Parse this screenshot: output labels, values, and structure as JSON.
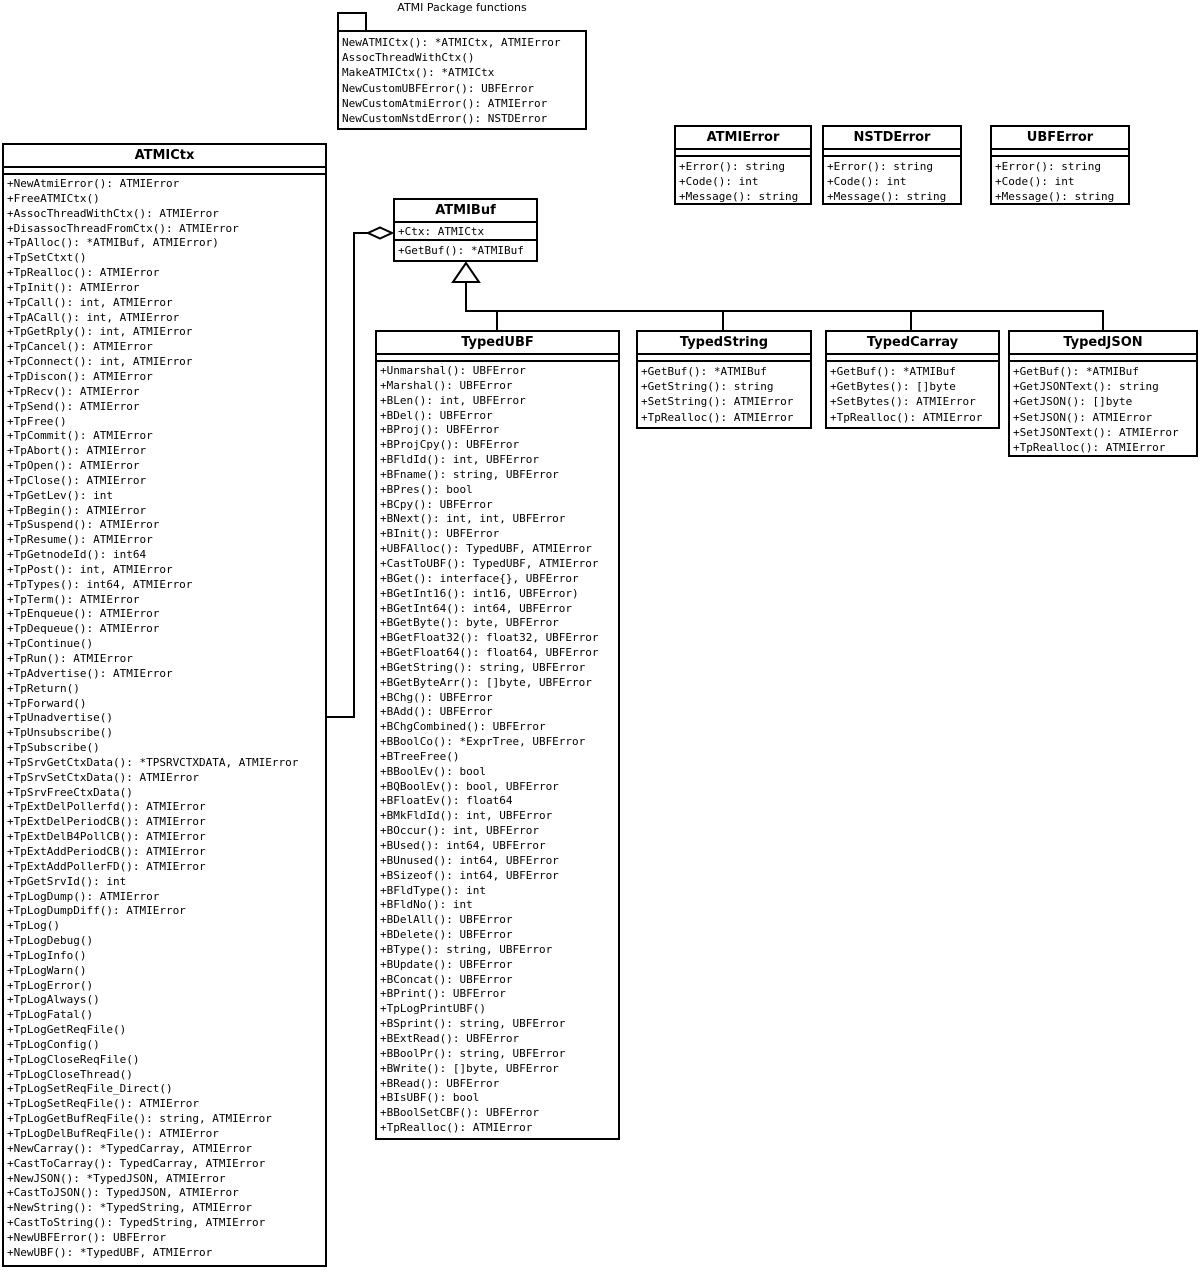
{
  "package_note": {
    "title": "ATMI Package functions",
    "functions": [
      "NewATMICtx(): *ATMICtx, ATMIError",
      "AssocThreadWithCtx()",
      "MakeATMICtx(): *ATMICtx",
      "NewCustomUBFError(): UBFError",
      "NewCustomAtmiError(): ATMIError",
      "NewCustomNstdError(): NSTDError"
    ]
  },
  "classes": {
    "atmictx": {
      "name": "ATMICtx",
      "attributes": [],
      "methods": [
        "+NewAtmiError(): ATMIError",
        "+FreeATMICtx()",
        "+AssocThreadWithCtx(): ATMIError",
        "+DisassocThreadFromCtx(): ATMIError",
        "+TpAlloc(): *ATMIBuf, ATMIError)",
        "+TpSetCtxt()",
        "+TpRealloc(): ATMIError",
        "+TpInit(): ATMIError",
        "+TpCall(): int, ATMIError",
        "+TpACall(): int, ATMIError",
        "+TpGetRply(): int, ATMIError",
        "+TpCancel(): ATMIError",
        "+TpConnect(): int, ATMIError",
        "+TpDiscon(): ATMIError",
        "+TpRecv(): ATMIError",
        "+TpSend(): ATMIError",
        "+TpFree()",
        "+TpCommit(): ATMIError",
        "+TpAbort(): ATMIError",
        "+TpOpen(): ATMIError",
        "+TpClose(): ATMIError",
        "+TpGetLev(): int",
        "+TpBegin(): ATMIError",
        "+TpSuspend(): ATMIError",
        "+TpResume(): ATMIError",
        "+TpGetnodeId(): int64",
        "+TpPost(): int, ATMIError",
        "+TpTypes(): int64, ATMIError",
        "+TpTerm(): ATMIError",
        "+TpEnqueue(): ATMIError",
        "+TpDequeue(): ATMIError",
        "+TpContinue()",
        "+TpRun(): ATMIError",
        "+TpAdvertise(): ATMIError",
        "+TpReturn()",
        "+TpForward()",
        "+TpUnadvertise()",
        "+TpUnsubscribe()",
        "+TpSubscribe()",
        "+TpSrvGetCtxData(): *TPSRVCTXDATA, ATMIError",
        "+TpSrvSetCtxData(): ATMIError",
        "+TpSrvFreeCtxData()",
        "+TpExtDelPollerfd(): ATMIError",
        "+TpExtDelPeriodCB(): ATMIError",
        "+TpExtDelB4PollCB(): ATMIError",
        "+TpExtAddPeriodCB(): ATMIError",
        "+TpExtAddPollerFD(): ATMIError",
        "+TpGetSrvId(): int",
        "+TpLogDump(): ATMIError",
        "+TpLogDumpDiff(): ATMIError",
        "+TpLog()",
        "+TpLogDebug()",
        "+TpLogInfo()",
        "+TpLogWarn()",
        "+TpLogError()",
        "+TpLogAlways()",
        "+TpLogFatal()",
        "+TpLogGetReqFile()",
        "+TpLogConfig()",
        "+TpLogCloseReqFile()",
        "+TpLogCloseThread()",
        "+TpLogSetReqFile_Direct()",
        "+TpLogSetReqFile(): ATMIError",
        "+TpLogGetBufReqFile(): string, ATMIError",
        "+TpLogDelBufReqFile(): ATMIError",
        "+NewCarray(): *TypedCarray, ATMIError",
        "+CastToCarray(): TypedCarray, ATMIError",
        "+NewJSON(): *TypedJSON, ATMIError",
        "+CastToJSON(): TypedJSON, ATMIError",
        "+NewString(): *TypedString, ATMIError",
        "+CastToString(): TypedString, ATMIError",
        "+NewUBFError(): UBFError",
        "+NewUBF(): *TypedUBF, ATMIError"
      ]
    },
    "atmibuf": {
      "name": "ATMIBuf",
      "attributes": [
        "+Ctx: ATMICtx"
      ],
      "methods": [
        "+GetBuf(): *ATMIBuf"
      ]
    },
    "atmierror": {
      "name": "ATMIError",
      "attributes": [],
      "methods": [
        "+Error(): string",
        "+Code(): int",
        "+Message(): string"
      ]
    },
    "nstderror": {
      "name": "NSTDError",
      "attributes": [],
      "methods": [
        "+Error(): string",
        "+Code(): int",
        "+Message(): string"
      ]
    },
    "ubferror": {
      "name": "UBFError",
      "attributes": [],
      "methods": [
        "+Error(): string",
        "+Code(): int",
        "+Message(): string"
      ]
    },
    "typedubf": {
      "name": "TypedUBF",
      "attributes": [],
      "methods": [
        "+Unmarshal(): UBFError",
        "+Marshal(): UBFError",
        "+BLen(): int, UBFError",
        "+BDel(): UBFError",
        "+BProj(): UBFError",
        "+BProjCpy(): UBFError",
        "+BFldId(): int, UBFError",
        "+BFname(): string, UBFError",
        "+BPres(): bool",
        "+BCpy(): UBFError",
        "+BNext(): int, int, UBFError",
        "+BInit(): UBFError",
        "+UBFAlloc(): TypedUBF, ATMIError",
        "+CastToUBF(): TypedUBF, ATMIError",
        "+BGet(): interface{}, UBFError",
        "+BGetInt16(): int16, UBFError)",
        "+BGetInt64(): int64, UBFError",
        "+BGetByte(): byte, UBFError",
        "+BGetFloat32(): float32, UBFError",
        "+BGetFloat64(): float64, UBFError",
        "+BGetString(): string, UBFError",
        "+BGetByteArr(): []byte, UBFError",
        "+BChg(): UBFError",
        "+BAdd(): UBFError",
        "+BChgCombined(): UBFError",
        "+BBoolCo(): *ExprTree, UBFError",
        "+BTreeFree()",
        "+BBoolEv(): bool",
        "+BQBoolEv(): bool, UBFError",
        "+BFloatEv(): float64",
        "+BMkFldId(): int, UBFError",
        "+BOccur(): int, UBFError",
        "+BUsed(): int64, UBFError",
        "+BUnused(): int64, UBFError",
        "+BSizeof(): int64, UBFError",
        "+BFldType(): int",
        "+BFldNo(): int",
        "+BDelAll(): UBFError",
        "+BDelete(): UBFError",
        "+BType(): string, UBFError",
        "+BUpdate(): UBFError",
        "+BConcat(): UBFError",
        "+BPrint(): UBFError",
        "+TpLogPrintUBF()",
        "+BSprint(): string, UBFError",
        "+BExtRead(): UBFError",
        "+BBoolPr(): string, UBFError",
        "+BWrite(): []byte, UBFError",
        "+BRead(): UBFError",
        "+BIsUBF(): bool",
        "+BBoolSetCBF(): UBFError",
        "+TpRealloc(): ATMIError"
      ]
    },
    "typedstring": {
      "name": "TypedString",
      "attributes": [],
      "methods": [
        "+GetBuf(): *ATMIBuf",
        "+GetString(): string",
        "+SetString(): ATMIError",
        "+TpRealloc(): ATMIError"
      ]
    },
    "typedcarray": {
      "name": "TypedCarray",
      "attributes": [],
      "methods": [
        "+GetBuf(): *ATMIBuf",
        "+GetBytes(): []byte",
        "+SetBytes(): ATMIError",
        "+TpRealloc(): ATMIError"
      ]
    },
    "typedjson": {
      "name": "TypedJSON",
      "attributes": [],
      "methods": [
        "+GetBuf(): *ATMIBuf",
        "+GetJSONText(): string",
        "+GetJSON(): []byte",
        "+SetJSON(): ATMIError",
        "+SetJSONText(): ATMIError",
        "+TpRealloc(): ATMIError"
      ]
    }
  }
}
